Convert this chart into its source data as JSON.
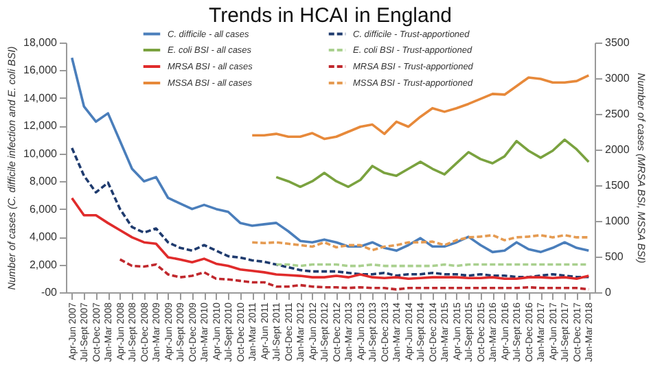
{
  "chart_data": {
    "type": "line",
    "title": "Trends in HCAI in England",
    "ylabel": "Number of cases (C. difficile infection and E. coli BSI)",
    "y2label": "Number of cases (MRSA BSI, MSSA BSI)",
    "categories": [
      "Apr-Jun 2007",
      "Jul-Sept 2007",
      "Oct-Dec 2007",
      "Jan-Mar 2008",
      "Apr-Jun 2008",
      "Jul-Sept 2008",
      "Oct-Dec 2008",
      "Jan-Mar 2009",
      "Apr-Jun 2009",
      "Jul-Sept 2009",
      "Oct-Dec 2009",
      "Jan-Mar 2010",
      "Apr-Jun 2010",
      "Jul-Sept 2010",
      "Oct-Dec 2010",
      "Jan-Mar 2011",
      "Apr-Jun 2011",
      "Jul-Sept 2011",
      "Oct-Dec 2011",
      "Jan-Mar 2012",
      "Apr-Jun 2012",
      "Jul-Sept 2012",
      "Oct-Dec 2012",
      "Jan-Mar 2013",
      "Apr-Jun 2013",
      "Jul-Sept 2013",
      "Oct-Dec 2013",
      "Jan-Mar 2014",
      "Apr-Jun 2014",
      "Jul-Sept 2014",
      "Oct-Dec 2014",
      "Jan-Mar 2015",
      "Apr-Jun 2015",
      "Jul-Sept 2015",
      "Oct-Dec 2015",
      "Jan-Mar 2016",
      "Apr-Jun 2016",
      "Jul-Sept 2016",
      "Oct-Dec 2016",
      "Jan-Mar 2017",
      "Apr-Jun 2017",
      "Jul-Sept 2017",
      "Oct-Dec 2017",
      "Jan-Mar 2018"
    ],
    "series": [
      {
        "name": "C. difficile - all cases",
        "color": "#4a7ebb",
        "line_style": "solid",
        "values": [
          16900,
          13400,
          12300,
          12900,
          10900,
          8900,
          8000,
          8300,
          6800,
          6400,
          6000,
          6300,
          6000,
          5800,
          5000,
          4800,
          4900,
          5000,
          4400,
          3700,
          3600,
          3800,
          3600,
          3300,
          3300,
          3600,
          3200,
          3000,
          3400,
          3900,
          3300,
          3300,
          3600,
          4000,
          3400,
          2900,
          3000,
          3600,
          3100,
          2900,
          3200,
          3600,
          3200,
          3000
        ]
      },
      {
        "name": "E. coli BSI - all cases",
        "color": "#7aa23f",
        "line_style": "solid",
        "values": [
          null,
          null,
          null,
          null,
          null,
          null,
          null,
          null,
          null,
          null,
          null,
          null,
          null,
          null,
          null,
          null,
          null,
          8300,
          8000,
          7600,
          8000,
          8600,
          8000,
          7600,
          8100,
          9100,
          8600,
          8400,
          8900,
          9400,
          8900,
          8500,
          9300,
          10100,
          9600,
          9300,
          9800,
          10900,
          10200,
          9700,
          10200,
          11000,
          10300,
          9400
        ]
      },
      {
        "name": "MRSA BSI - all cases",
        "color": "#e02b2b",
        "line_style": "solid",
        "axis": "y2",
        "values": [
          1320,
          1080,
          1080,
          970,
          870,
          770,
          700,
          680,
          490,
          460,
          420,
          470,
          400,
          370,
          320,
          300,
          280,
          250,
          240,
          230,
          210,
          210,
          230,
          210,
          250,
          210,
          200,
          210,
          190,
          200,
          210,
          210,
          210,
          200,
          200,
          210,
          190,
          190,
          210,
          210,
          200,
          210,
          190,
          230
        ]
      },
      {
        "name": "MSSA BSI - all cases",
        "color": "#e7893a",
        "line_style": "solid",
        "axis": "y2",
        "values": [
          null,
          null,
          null,
          null,
          null,
          null,
          null,
          null,
          null,
          null,
          null,
          null,
          null,
          null,
          null,
          2200,
          2200,
          2220,
          2180,
          2180,
          2230,
          2150,
          2180,
          2250,
          2320,
          2350,
          2220,
          2390,
          2320,
          2460,
          2580,
          2530,
          2580,
          2640,
          2710,
          2780,
          2770,
          2890,
          3010,
          2990,
          2940,
          2940,
          2960,
          3040
        ]
      },
      {
        "name": "C. difficile - Trust-apportioned",
        "color": "#1f3b6e",
        "line_style": "dashed",
        "values": [
          10400,
          8400,
          7200,
          7900,
          6000,
          4700,
          4300,
          4600,
          3600,
          3200,
          3000,
          3400,
          3000,
          2600,
          2500,
          2300,
          2200,
          2000,
          1800,
          1600,
          1500,
          1500,
          1500,
          1400,
          1300,
          1300,
          1400,
          1200,
          1300,
          1300,
          1400,
          1300,
          1300,
          1200,
          1300,
          1200,
          1200,
          1100,
          1100,
          1200,
          1300,
          1200,
          1100,
          1100
        ]
      },
      {
        "name": "E. coli BSI - Trust-apportioned",
        "color": "#a9d08e",
        "line_style": "dashed",
        "values": [
          null,
          null,
          null,
          null,
          null,
          null,
          null,
          null,
          null,
          null,
          null,
          null,
          null,
          null,
          null,
          null,
          null,
          2000,
          2000,
          1900,
          2000,
          2000,
          2000,
          1900,
          1900,
          2000,
          1900,
          1900,
          1900,
          1900,
          1900,
          2000,
          1900,
          2000,
          2000,
          2000,
          2000,
          2000,
          2000,
          2000,
          2000,
          2000,
          2000,
          2000
        ]
      },
      {
        "name": "MRSA BSI - Trust-apportioned",
        "color": "#c0282d",
        "line_style": "dashed",
        "axis": "y2",
        "values": [
          null,
          null,
          null,
          null,
          460,
          370,
          360,
          390,
          250,
          210,
          230,
          280,
          190,
          180,
          160,
          140,
          140,
          80,
          80,
          100,
          80,
          70,
          70,
          60,
          70,
          60,
          60,
          40,
          60,
          60,
          60,
          60,
          60,
          60,
          60,
          60,
          60,
          60,
          70,
          60,
          60,
          60,
          60,
          40
        ]
      },
      {
        "name": "MSSA BSI - Trust-apportioned",
        "color": "#e59b52",
        "line_style": "dashed",
        "axis": "y2",
        "values": [
          null,
          null,
          null,
          null,
          null,
          null,
          null,
          null,
          null,
          null,
          null,
          null,
          null,
          null,
          null,
          700,
          690,
          700,
          680,
          660,
          640,
          700,
          630,
          660,
          660,
          590,
          640,
          660,
          700,
          700,
          710,
          660,
          730,
          770,
          780,
          800,
          730,
          770,
          780,
          800,
          770,
          800,
          770,
          770
        ]
      }
    ],
    "ylim": [
      0,
      18000
    ],
    "yticks": [
      {
        "value": 0,
        "label": "-00"
      },
      {
        "value": 2000,
        "label": "2,000"
      },
      {
        "value": 4000,
        "label": "4,000"
      },
      {
        "value": 6000,
        "label": "6,000"
      },
      {
        "value": 8000,
        "label": "8,000"
      },
      {
        "value": 10000,
        "label": "10,000"
      },
      {
        "value": 12000,
        "label": "12,000"
      },
      {
        "value": 14000,
        "label": "14,000"
      },
      {
        "value": 16000,
        "label": "16,000"
      },
      {
        "value": 18000,
        "label": "18,000"
      }
    ],
    "y2lim": [
      0,
      3500
    ],
    "y2ticks": [
      0,
      500,
      1000,
      1500,
      2000,
      2500,
      3000,
      3500
    ],
    "legend": "top",
    "marker": "none",
    "grid": false
  }
}
